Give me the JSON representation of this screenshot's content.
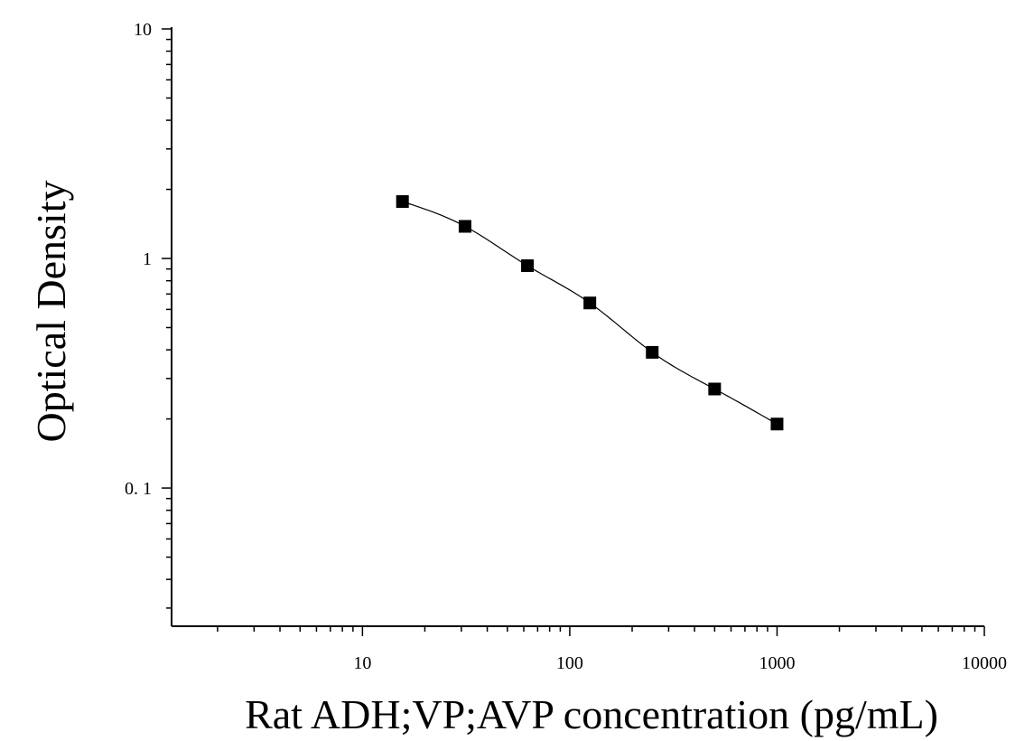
{
  "chart_data": {
    "type": "scatter",
    "title": "",
    "xlabel": "Rat ADH;VP;AVP concentration (pg/mL)",
    "ylabel": "Optical Density",
    "x_scale": "log",
    "y_scale": "log",
    "xlim": [
      1.2,
      10000
    ],
    "ylim": [
      0.025,
      10
    ],
    "x_ticks": [
      {
        "value": 10,
        "label": "10"
      },
      {
        "value": 100,
        "label": "100"
      },
      {
        "value": 1000,
        "label": "1000"
      },
      {
        "value": 10000,
        "label": "10000"
      }
    ],
    "y_ticks": [
      {
        "value": 0.1,
        "label": "0. 1"
      },
      {
        "value": 1,
        "label": "1"
      },
      {
        "value": 10,
        "label": "10"
      }
    ],
    "grid": false,
    "legend": "none",
    "series": [
      {
        "marker": "square",
        "color": "#000000",
        "points": [
          {
            "x": 15.6,
            "y": 1.77
          },
          {
            "x": 31.25,
            "y": 1.38
          },
          {
            "x": 62.5,
            "y": 0.93
          },
          {
            "x": 125,
            "y": 0.64
          },
          {
            "x": 250,
            "y": 0.39
          },
          {
            "x": 500,
            "y": 0.27
          },
          {
            "x": 1000,
            "y": 0.19
          }
        ],
        "fit_curve": true
      }
    ]
  }
}
